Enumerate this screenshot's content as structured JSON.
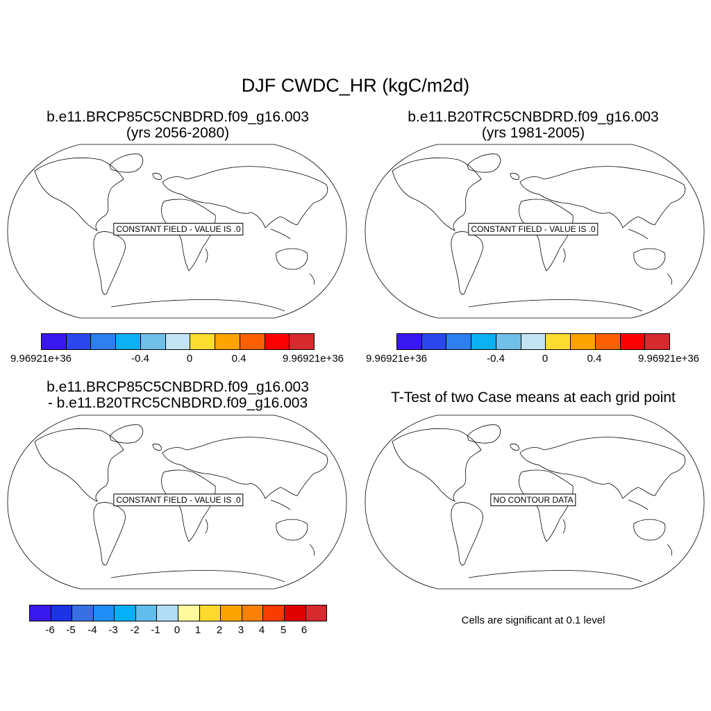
{
  "title": "DJF CWDC_HR (kgC/m2d)",
  "panels": {
    "top_left": {
      "title_line1": "b.e11.BRCP85C5CNBDRD.f09_g16.003",
      "title_line2": "(yrs 2056-2080)",
      "notice": "CONSTANT FIELD - VALUE IS .0",
      "colorbar_labels": [
        "9.96921e+36",
        "-0.4",
        "0",
        "0.4",
        "9.96921e+36"
      ]
    },
    "top_right": {
      "title_line1": "b.e11.B20TRC5CNBDRD.f09_g16.003",
      "title_line2": "(yrs 1981-2005)",
      "notice": "CONSTANT FIELD - VALUE IS .0",
      "colorbar_labels": [
        "9.96921e+36",
        "-0.4",
        "0",
        "0.4",
        "9.96921e+36"
      ]
    },
    "bottom_left": {
      "title_line1": "b.e11.BRCP85C5CNBDRD.f09_g16.003",
      "title_line2": "- b.e11.B20TRC5CNBDRD.f09_g16.003",
      "notice": "CONSTANT FIELD - VALUE IS .0",
      "colorbar_labels": [
        "-6",
        "-5",
        "-4",
        "-3",
        "-2",
        "-1",
        "0",
        "1",
        "2",
        "3",
        "4",
        "5",
        "6"
      ]
    },
    "bottom_right": {
      "title_line1": "T-Test of two Case means at each grid point",
      "notice": "NO CONTOUR DATA",
      "note": "Cells are significant at 0.1 level"
    }
  },
  "colorbar_colors_11": [
    "#3a18f0",
    "#2a48ee",
    "#2e7ff0",
    "#0bb0f5",
    "#70c0ea",
    "#c4e4f4",
    "#fddc32",
    "#fda400",
    "#fb6004",
    "#fb0000",
    "#d52a2e"
  ],
  "colorbar_colors_14": [
    "#3a18f0",
    "#1d33e8",
    "#3870e4",
    "#1e8ef6",
    "#06b0f8",
    "#62bded",
    "#b0dcf4",
    "#fffa9c",
    "#fdd92e",
    "#fda400",
    "#fb8008",
    "#fb3c02",
    "#e00000",
    "#d52a2e"
  ]
}
